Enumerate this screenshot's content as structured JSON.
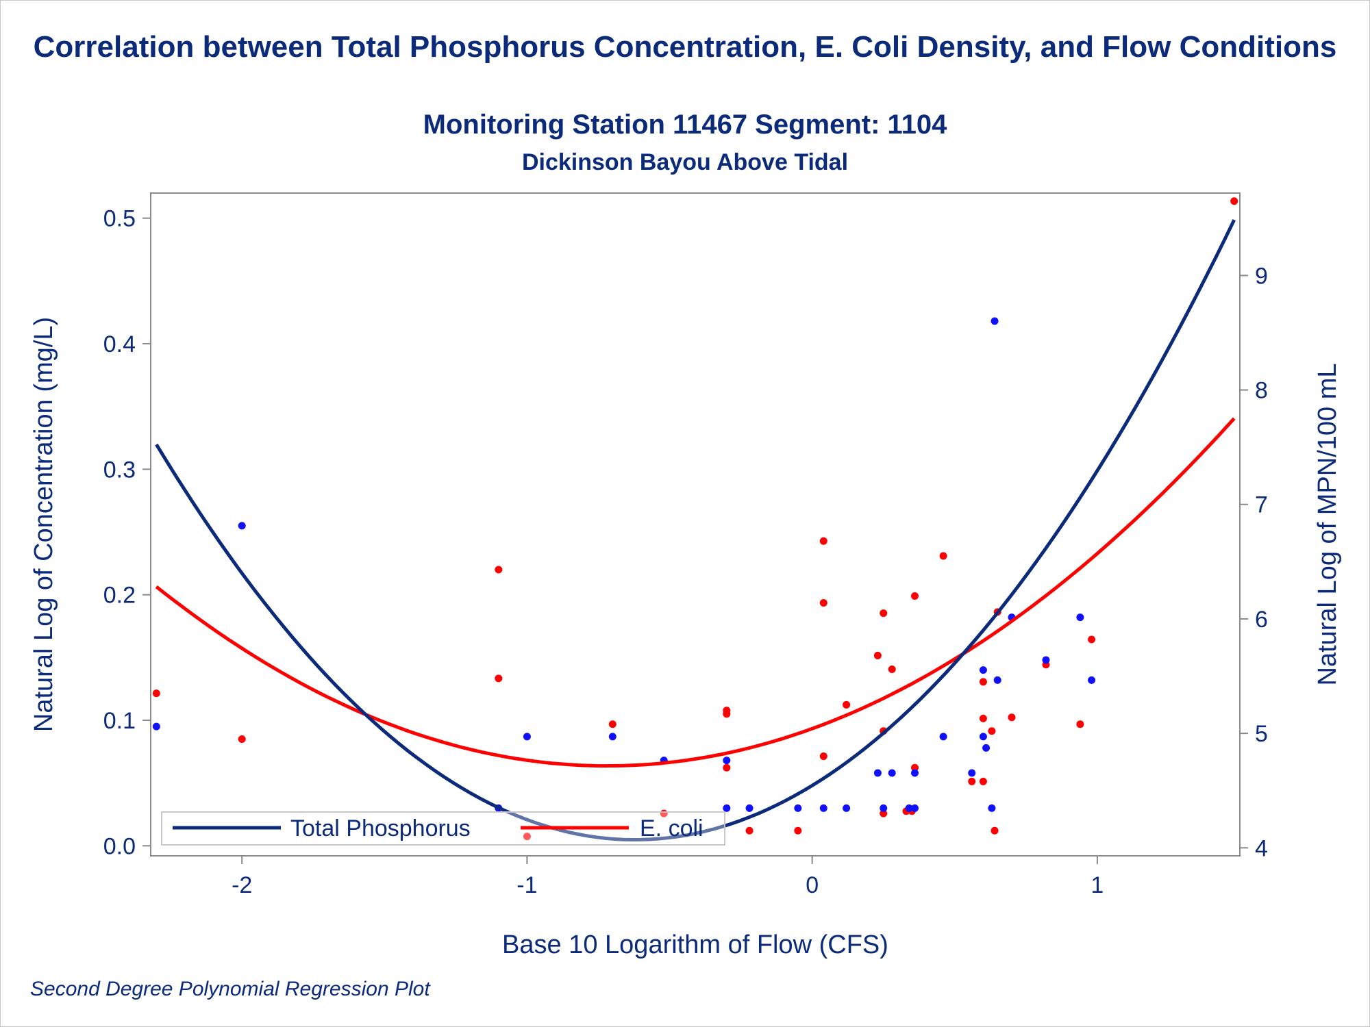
{
  "title": "Correlation between Total Phosphorus Concentration, E. Coli Density, and Flow Conditions",
  "subtitle1": "Monitoring Station 11467 Segment: 1104",
  "subtitle2": "Dickinson Bayou Above Tidal",
  "footnote": "Second Degree Polynomial Regression Plot",
  "colors": {
    "text": "#0b2a7a",
    "phosphorus_line": "#0b2a7a",
    "phosphorus_points": "#1010ff",
    "ecoli": "#ff0000",
    "axis": "#8a8a8a"
  },
  "chart_data": {
    "type": "scatter",
    "xlabel": "Base 10 Logarithm of Flow (CFS)",
    "ylabel": "Natural Log of Concentration (mg/L)",
    "y2label": "Natural Log of MPN/100 mL",
    "xlim": [
      -2.32,
      1.5
    ],
    "ylim": [
      -0.008,
      0.52
    ],
    "y2lim": [
      3.93,
      9.72
    ],
    "xticks": [
      -2,
      -1,
      0,
      1
    ],
    "yticks": [
      0.0,
      0.1,
      0.2,
      0.3,
      0.4,
      0.5
    ],
    "y2ticks": [
      4,
      5,
      6,
      7,
      8,
      9
    ],
    "legend": {
      "placement": "bottom-left inside",
      "entries": [
        "Total Phosphorus",
        "E. coli"
      ]
    },
    "series": [
      {
        "name": "Total Phosphorus",
        "axis": "left",
        "points": [
          [
            -2.3,
            0.095
          ],
          [
            -2.0,
            0.255
          ],
          [
            -1.1,
            0.03
          ],
          [
            -1.0,
            0.087
          ],
          [
            -0.7,
            0.087
          ],
          [
            -0.52,
            0.068
          ],
          [
            -0.3,
            0.068
          ],
          [
            -0.3,
            0.03
          ],
          [
            -0.22,
            0.03
          ],
          [
            -0.05,
            0.03
          ],
          [
            0.04,
            0.03
          ],
          [
            0.12,
            0.03
          ],
          [
            0.23,
            0.058
          ],
          [
            0.28,
            0.058
          ],
          [
            0.36,
            0.058
          ],
          [
            0.25,
            0.03
          ],
          [
            0.34,
            0.03
          ],
          [
            0.36,
            0.03
          ],
          [
            0.46,
            0.087
          ],
          [
            0.56,
            0.058
          ],
          [
            0.6,
            0.087
          ],
          [
            0.61,
            0.078
          ],
          [
            0.6,
            0.14
          ],
          [
            0.63,
            0.03
          ],
          [
            0.64,
            0.418
          ],
          [
            0.65,
            0.132
          ],
          [
            0.7,
            0.182
          ],
          [
            0.82,
            0.148
          ],
          [
            0.94,
            0.182
          ],
          [
            0.98,
            0.132
          ]
        ],
        "fit": {
          "a": 0.1118,
          "b": 0.139,
          "c": 0.048
        }
      },
      {
        "name": "E. coli",
        "axis": "right",
        "points": [
          [
            -2.3,
            5.35
          ],
          [
            -2.0,
            4.95
          ],
          [
            -1.1,
            6.43
          ],
          [
            -1.1,
            5.48
          ],
          [
            -1.0,
            4.1
          ],
          [
            -0.7,
            5.08
          ],
          [
            -0.52,
            4.3
          ],
          [
            -0.3,
            5.2
          ],
          [
            -0.3,
            5.17
          ],
          [
            -0.3,
            4.7
          ],
          [
            -0.22,
            4.15
          ],
          [
            -0.05,
            4.15
          ],
          [
            0.04,
            6.68
          ],
          [
            0.04,
            6.14
          ],
          [
            0.04,
            4.8
          ],
          [
            0.12,
            5.25
          ],
          [
            0.23,
            5.68
          ],
          [
            0.25,
            6.05
          ],
          [
            0.28,
            5.56
          ],
          [
            0.25,
            5.02
          ],
          [
            0.25,
            4.3
          ],
          [
            0.33,
            4.32
          ],
          [
            0.35,
            4.32
          ],
          [
            0.36,
            6.2
          ],
          [
            0.36,
            4.7
          ],
          [
            0.46,
            6.55
          ],
          [
            0.56,
            4.58
          ],
          [
            0.6,
            5.45
          ],
          [
            0.6,
            5.13
          ],
          [
            0.6,
            4.58
          ],
          [
            0.63,
            5.02
          ],
          [
            0.64,
            4.15
          ],
          [
            0.65,
            6.06
          ],
          [
            0.7,
            5.14
          ],
          [
            0.82,
            5.6
          ],
          [
            0.94,
            5.08
          ],
          [
            0.98,
            5.82
          ],
          [
            1.48,
            9.65
          ]
        ],
        "fit": {
          "a": 0.627,
          "b": 0.903,
          "c": 5.041
        }
      }
    ]
  }
}
